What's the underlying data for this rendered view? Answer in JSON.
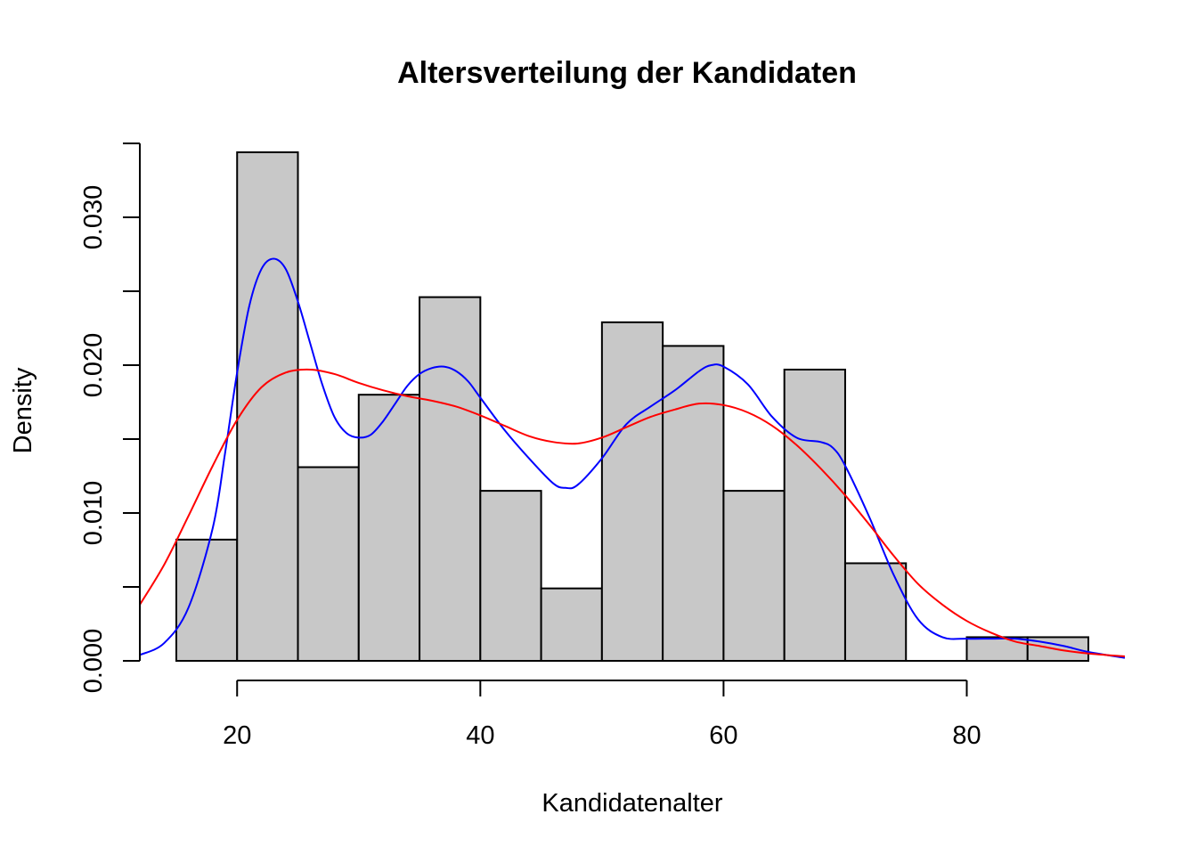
{
  "chart_data": {
    "type": "histogram",
    "title": "Altersverteilung der Kandidaten",
    "xlabel": "Kandidatenalter",
    "ylabel": "Density",
    "xlim": [
      12,
      93
    ],
    "ylim": [
      0,
      0.035
    ],
    "x_ticks": [
      20,
      40,
      60,
      80
    ],
    "y_ticks": [
      0,
      0.005,
      0.01,
      0.015,
      0.02,
      0.025,
      0.03,
      0.035
    ],
    "y_tick_labels": [
      "0.000",
      "",
      "0.010",
      "",
      "0.020",
      "",
      "0.030",
      ""
    ],
    "x_axis_range": [
      20,
      80
    ],
    "bar_color": "#c8c8c8",
    "bins": [
      {
        "x0": 15,
        "x1": 20,
        "density": 0.0082
      },
      {
        "x0": 20,
        "x1": 25,
        "density": 0.0344
      },
      {
        "x0": 25,
        "x1": 30,
        "density": 0.0131
      },
      {
        "x0": 30,
        "x1": 35,
        "density": 0.018
      },
      {
        "x0": 35,
        "x1": 40,
        "density": 0.0246
      },
      {
        "x0": 40,
        "x1": 45,
        "density": 0.0115
      },
      {
        "x0": 45,
        "x1": 50,
        "density": 0.0049
      },
      {
        "x0": 50,
        "x1": 55,
        "density": 0.0229
      },
      {
        "x0": 55,
        "x1": 60,
        "density": 0.0213
      },
      {
        "x0": 60,
        "x1": 65,
        "density": 0.0115
      },
      {
        "x0": 65,
        "x1": 70,
        "density": 0.0197
      },
      {
        "x0": 70,
        "x1": 75,
        "density": 0.0066
      },
      {
        "x0": 75,
        "x1": 80,
        "density": 0.0
      },
      {
        "x0": 80,
        "x1": 85,
        "density": 0.0016
      },
      {
        "x0": 85,
        "x1": 90,
        "density": 0.0016
      }
    ],
    "series": [
      {
        "color": "#0000ff",
        "x": [
          12,
          14,
          16,
          18,
          19,
          20,
          21,
          22,
          23,
          24,
          25,
          26,
          27,
          28,
          29,
          30,
          31,
          32,
          33,
          34,
          35,
          36,
          37,
          38,
          39,
          40,
          42,
          44,
          46,
          47,
          48,
          50,
          52,
          54,
          56,
          58,
          59,
          60,
          62,
          64,
          66,
          68,
          69,
          70,
          72,
          74,
          76,
          78,
          80,
          82,
          84,
          86,
          88,
          90,
          93
        ],
        "y": [
          0.0004,
          0.0012,
          0.0036,
          0.009,
          0.014,
          0.0195,
          0.024,
          0.0265,
          0.0272,
          0.0265,
          0.0243,
          0.0215,
          0.0187,
          0.0165,
          0.0154,
          0.0151,
          0.0153,
          0.0162,
          0.0174,
          0.0186,
          0.0194,
          0.0198,
          0.0199,
          0.0196,
          0.0189,
          0.0178,
          0.0156,
          0.0137,
          0.012,
          0.0117,
          0.0119,
          0.0137,
          0.016,
          0.0172,
          0.0183,
          0.0196,
          0.02,
          0.0199,
          0.0187,
          0.0165,
          0.0151,
          0.0148,
          0.0144,
          0.0132,
          0.0097,
          0.0058,
          0.0028,
          0.0016,
          0.0015,
          0.0015,
          0.0015,
          0.0013,
          0.001,
          0.0006,
          0.0002
        ]
      },
      {
        "color": "#ff0000",
        "x": [
          12,
          14,
          16,
          18,
          20,
          22,
          24,
          26,
          28,
          30,
          32,
          34,
          36,
          38,
          40,
          42,
          44,
          46,
          48,
          50,
          52,
          54,
          56,
          58,
          60,
          62,
          64,
          66,
          68,
          70,
          72,
          74,
          76,
          78,
          80,
          82,
          84,
          86,
          88,
          90,
          93
        ],
        "y": [
          0.0038,
          0.0065,
          0.0098,
          0.0132,
          0.0163,
          0.0185,
          0.0195,
          0.0197,
          0.0194,
          0.0188,
          0.0183,
          0.0179,
          0.0176,
          0.0172,
          0.0166,
          0.0159,
          0.0152,
          0.0148,
          0.0147,
          0.0151,
          0.0158,
          0.0165,
          0.017,
          0.0174,
          0.0173,
          0.0168,
          0.0159,
          0.0146,
          0.013,
          0.0112,
          0.0092,
          0.0071,
          0.0052,
          0.0038,
          0.0027,
          0.0019,
          0.0013,
          0.001,
          0.0007,
          0.0005,
          0.0003
        ]
      }
    ]
  }
}
